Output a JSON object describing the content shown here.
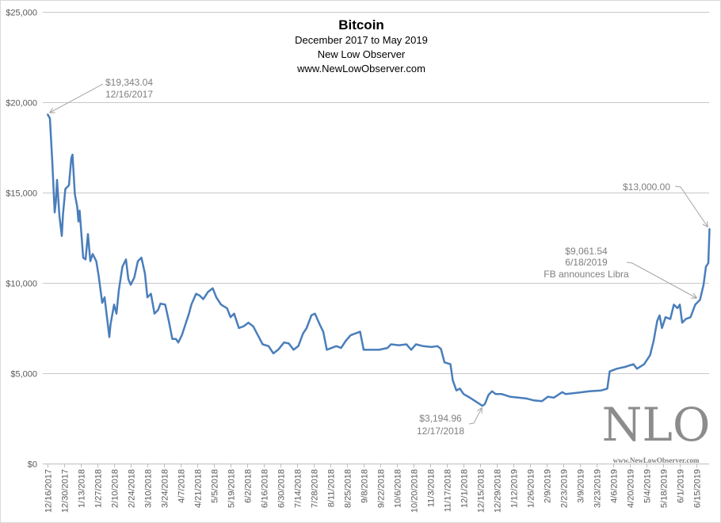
{
  "chart_data": {
    "type": "line",
    "title": "Bitcoin",
    "subtitle_lines": [
      "December 2017 to May 2019",
      "New Low Observer",
      "www.NewLowObserver.com"
    ],
    "xlabel": "",
    "ylabel": "",
    "ylim": [
      0,
      25000
    ],
    "grid": true,
    "legend": "none",
    "line_color": "#4a7ebb",
    "y_tick_labels": [
      "$0",
      "$5,000",
      "$10,000",
      "$15,000",
      "$20,000",
      "$25,000"
    ],
    "y_tick_values": [
      0,
      5000,
      10000,
      15000,
      20000,
      25000
    ],
    "x_tick_labels": [
      "12/16/2017",
      "12/30/2017",
      "1/13/2018",
      "1/27/2018",
      "2/10/2018",
      "2/24/2018",
      "3/10/2018",
      "3/24/2018",
      "4/7/2018",
      "4/21/2018",
      "5/5/2018",
      "5/19/2018",
      "6/2/2018",
      "6/16/2018",
      "6/30/2018",
      "7/14/2018",
      "7/28/2018",
      "8/11/2018",
      "8/25/2018",
      "9/8/2018",
      "9/22/2018",
      "10/6/2018",
      "10/20/2018",
      "11/3/2018",
      "11/17/2018",
      "12/1/2018",
      "12/15/2018",
      "12/29/2018",
      "1/12/2019",
      "1/26/2019",
      "2/9/2019",
      "2/23/2019",
      "3/9/2019",
      "3/23/2019",
      "4/6/2019",
      "4/20/2019",
      "5/4/2019",
      "5/18/2019",
      "6/1/2019",
      "6/15/2019"
    ],
    "x": [
      "12/16/2017",
      "12/18/2017",
      "12/20/2017",
      "12/22/2017",
      "12/23/2017",
      "12/24/2017",
      "12/26/2017",
      "12/28/2017",
      "12/29/2017",
      "12/31/2017",
      "1/3/2018",
      "1/5/2018",
      "1/6/2018",
      "1/8/2018",
      "1/10/2018",
      "1/11/2018",
      "1/12/2018",
      "1/15/2018",
      "1/17/2018",
      "1/19/2018",
      "1/21/2018",
      "1/23/2018",
      "1/26/2018",
      "1/28/2018",
      "1/31/2018",
      "2/2/2018",
      "2/6/2018",
      "2/7/2018",
      "2/10/2018",
      "2/12/2018",
      "2/14/2018",
      "2/17/2018",
      "2/20/2018",
      "2/22/2018",
      "2/24/2018",
      "2/27/2018",
      "3/2/2018",
      "3/5/2018",
      "3/8/2018",
      "3/10/2018",
      "3/13/2018",
      "3/16/2018",
      "3/19/2018",
      "3/21/2018",
      "3/25/2018",
      "3/28/2018",
      "3/31/2018",
      "4/3/2018",
      "4/5/2018",
      "4/8/2018",
      "4/12/2018",
      "4/14/2018",
      "4/16/2018",
      "4/20/2018",
      "4/23/2018",
      "4/26/2018",
      "4/30/2018",
      "5/4/2018",
      "5/7/2018",
      "5/11/2018",
      "5/16/2018",
      "5/19/2018",
      "5/22/2018",
      "5/26/2018",
      "5/30/2018",
      "6/3/2018",
      "6/7/2018",
      "6/11/2018",
      "6/15/2018",
      "6/20/2018",
      "6/24/2018",
      "6/28/2018",
      "7/3/2018",
      "7/7/2018",
      "7/11/2018",
      "7/15/2018",
      "7/19/2018",
      "7/22/2018",
      "7/26/2018",
      "7/29/2018",
      "8/2/2018",
      "8/5/2018",
      "8/8/2018",
      "8/12/2018",
      "8/16/2018",
      "8/20/2018",
      "8/24/2018",
      "8/28/2018",
      "9/1/2018",
      "9/5/2018",
      "9/8/2018",
      "9/14/2018",
      "9/21/2018",
      "9/28/2018",
      "10/1/2018",
      "10/8/2018",
      "10/14/2018",
      "10/18/2018",
      "10/22/2018",
      "10/28/2018",
      "11/4/2018",
      "11/9/2018",
      "11/12/2018",
      "11/15/2018",
      "11/20/2018",
      "11/22/2018",
      "11/25/2018",
      "11/28/2018",
      "12/1/2018",
      "12/5/2018",
      "12/11/2018",
      "12/17/2018",
      "12/19/2018",
      "12/22/2018",
      "12/25/2018",
      "12/28/2018",
      "1/2/2019",
      "1/9/2019",
      "1/16/2019",
      "1/23/2019",
      "1/29/2019",
      "2/5/2019",
      "2/10/2019",
      "2/15/2019",
      "2/22/2019",
      "2/25/2019",
      "3/4/2019",
      "3/11/2019",
      "3/17/2019",
      "3/27/2019",
      "4/1/2019",
      "4/3/2019",
      "4/9/2019",
      "4/16/2019",
      "4/23/2019",
      "4/26/2019",
      "5/2/2019",
      "5/7/2019",
      "5/10/2019",
      "5/13/2019",
      "5/15/2019",
      "5/17/2019",
      "5/20/2019",
      "5/24/2019",
      "5/27/2019",
      "5/30/2019",
      "6/1/2019",
      "6/3/2019",
      "6/6/2019",
      "6/10/2019",
      "6/14/2019",
      "6/18/2019",
      "6/21/2019",
      "6/23/2019",
      "6/25/2019",
      "6/26/2019"
    ],
    "y": [
      19343,
      19100,
      16700,
      13900,
      14500,
      15700,
      13700,
      12600,
      13800,
      15200,
      15400,
      16900,
      17100,
      14900,
      14200,
      13400,
      14000,
      11400,
      11300,
      12700,
      11200,
      11600,
      11200,
      10400,
      8900,
      9200,
      7000,
      7700,
      8800,
      8300,
      9600,
      10900,
      11300,
      10200,
      9900,
      10300,
      11200,
      11400,
      10500,
      9200,
      9400,
      8300,
      8500,
      8850,
      8800,
      7900,
      6900,
      6900,
      6700,
      7100,
      7900,
      8300,
      8800,
      9400,
      9300,
      9100,
      9500,
      9700,
      9200,
      8800,
      8600,
      8100,
      8300,
      7500,
      7600,
      7800,
      7600,
      7100,
      6600,
      6500,
      6100,
      6300,
      6700,
      6650,
      6300,
      6500,
      7200,
      7500,
      8200,
      8300,
      7700,
      7300,
      6300,
      6400,
      6500,
      6400,
      6800,
      7100,
      7200,
      7300,
      6300,
      6300,
      6300,
      6400,
      6600,
      6550,
      6600,
      6300,
      6600,
      6500,
      6450,
      6500,
      6350,
      5600,
      5500,
      4600,
      4050,
      4150,
      3850,
      3700,
      3450,
      3195,
      3300,
      3800,
      4000,
      3850,
      3850,
      3700,
      3650,
      3600,
      3500,
      3450,
      3700,
      3650,
      3950,
      3850,
      3900,
      3950,
      4000,
      4050,
      4150,
      5100,
      5250,
      5350,
      5500,
      5250,
      5500,
      6000,
      6800,
      7900,
      8200,
      7500,
      8100,
      8000,
      8800,
      8600,
      8800,
      7800,
      8000,
      8100,
      8800,
      9062,
      9900,
      10900,
      11100,
      13000
    ],
    "annotations": [
      {
        "lines": [
          "$19,343.04",
          "12/16/2017"
        ]
      },
      {
        "lines": [
          "$3,194.96",
          "12/17/2018"
        ]
      },
      {
        "lines": [
          "$9,061.54",
          "6/18/2019",
          "FB announces Libra"
        ]
      },
      {
        "lines": [
          "$13,000.00"
        ]
      }
    ]
  },
  "logo": {
    "text": "NLO",
    "url_text": "www.NewLowObserver.com"
  }
}
